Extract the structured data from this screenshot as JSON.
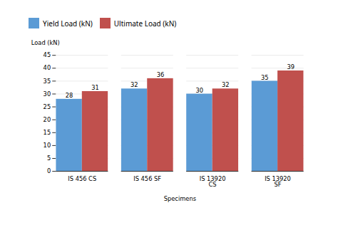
{
  "chart_data": {
    "type": "bar",
    "categories": [
      "IS 456 CS",
      "IS 456 SF",
      "IS 13920\nCS",
      "IS 13920\nSF"
    ],
    "series": [
      {
        "name": "Yield Load (kN)",
        "color": "#5b9bd5",
        "values": [
          28,
          32,
          30,
          35
        ]
      },
      {
        "name": "Ultimate Load (kN)",
        "color": "#c0504d",
        "values": [
          31,
          36,
          32,
          39
        ]
      }
    ],
    "xlabel": "Specimens",
    "ylabel": "Load (kN)",
    "ylim": [
      0,
      45
    ],
    "yticks": [
      0,
      5,
      10,
      15,
      20,
      25,
      30,
      35,
      40,
      45
    ],
    "grid": true,
    "legend": "top",
    "data_labels": true
  }
}
